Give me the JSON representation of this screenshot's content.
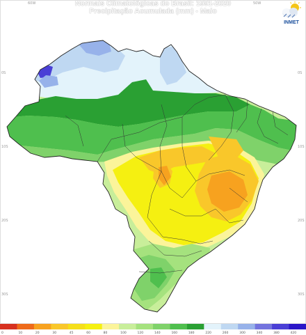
{
  "header": {
    "title_line1": "Normais Climatológicas do Brasil: 1991-2020",
    "title_line2": "Precipitação Acumulada (mm) - Maio"
  },
  "logo": {
    "icon": "inmet-cloud-sun-icon",
    "text": "INMET"
  },
  "axes": {
    "left_ticks": [
      "0S",
      "10S",
      "20S",
      "30S"
    ],
    "right_ticks": [
      "0S",
      "10S",
      "20S",
      "30S"
    ],
    "top_ticks": [
      "60W",
      "50W"
    ]
  },
  "legend": {
    "labels": [
      "0",
      "10",
      "20",
      "30",
      "45",
      "60",
      "80",
      "100",
      "120",
      "140",
      "160",
      "180",
      "220",
      "260",
      "300",
      "340",
      "380",
      "420"
    ],
    "colors": [
      "#d7301f",
      "#ee6a1a",
      "#f7a21f",
      "#f9c72a",
      "#f5df1a",
      "#f5f011",
      "#fbf49a",
      "#c8ee9a",
      "#a5e27e",
      "#7fd26a",
      "#4fbf4e",
      "#2aa033",
      "#e3f3fb",
      "#bfd8f2",
      "#97b2ea",
      "#7373de",
      "#4a3fd6",
      "#2b16c8"
    ]
  }
}
